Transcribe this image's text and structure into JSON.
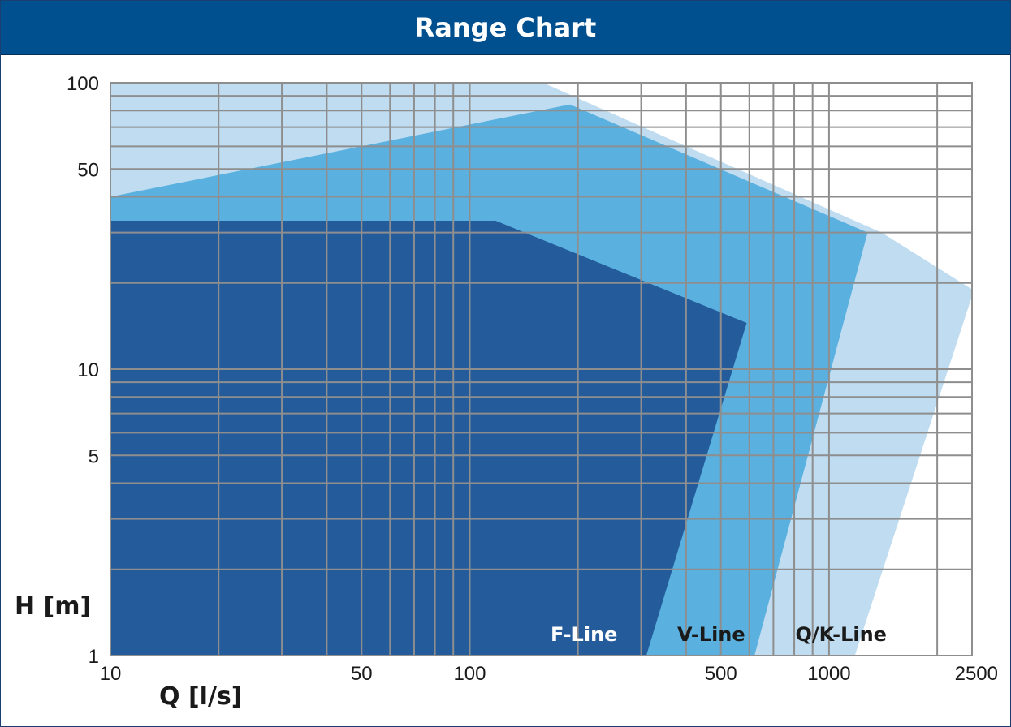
{
  "title": "Range Chart",
  "chart_data": {
    "type": "area",
    "title": "Range Chart",
    "xlabel": "Q [l/s]",
    "ylabel": "H [m]",
    "xscale": "log",
    "yscale": "log",
    "xlim": [
      10,
      2500
    ],
    "ylim": [
      1,
      100
    ],
    "x_ticks": [
      10,
      50,
      100,
      500,
      1000,
      2500
    ],
    "y_ticks": [
      1,
      5,
      10,
      50,
      100
    ],
    "x_grid": [
      20,
      30,
      40,
      50,
      60,
      70,
      80,
      90,
      100,
      200,
      300,
      400,
      500,
      600,
      700,
      800,
      900,
      1000,
      2000
    ],
    "y_grid": [
      2,
      3,
      4,
      5,
      6,
      7,
      8,
      9,
      10,
      20,
      30,
      40,
      50,
      60,
      70,
      80,
      90
    ],
    "grid": true,
    "series": [
      {
        "name": "Q/K-Line",
        "color": "#bfdcf0",
        "points": [
          [
            10,
            100
          ],
          [
            160,
            100
          ],
          [
            400,
            60
          ],
          [
            1400,
            30
          ],
          [
            2500,
            19
          ],
          [
            2500,
            18
          ],
          [
            1180,
            1
          ],
          [
            10,
            1
          ]
        ]
      },
      {
        "name": "V-Line",
        "color": "#5ab0df",
        "points": [
          [
            10,
            40
          ],
          [
            190,
            84
          ],
          [
            1280,
            30
          ],
          [
            620,
            1
          ],
          [
            10,
            1
          ]
        ]
      },
      {
        "name": "F-Line",
        "color": "#245b9b",
        "points": [
          [
            10,
            33
          ],
          [
            118,
            33
          ],
          [
            590,
            14.5
          ],
          [
            310,
            1
          ],
          [
            10,
            1
          ]
        ]
      }
    ],
    "labels": [
      {
        "text": "F-Line",
        "x": 208,
        "y": 1.25,
        "color": "#ffffff"
      },
      {
        "text": "V-Line",
        "x": 470,
        "y": 1.25,
        "color": "#1a1a1a"
      },
      {
        "text": "Q/K-Line",
        "x": 1080,
        "y": 1.25,
        "color": "#1a1a1a"
      }
    ]
  }
}
